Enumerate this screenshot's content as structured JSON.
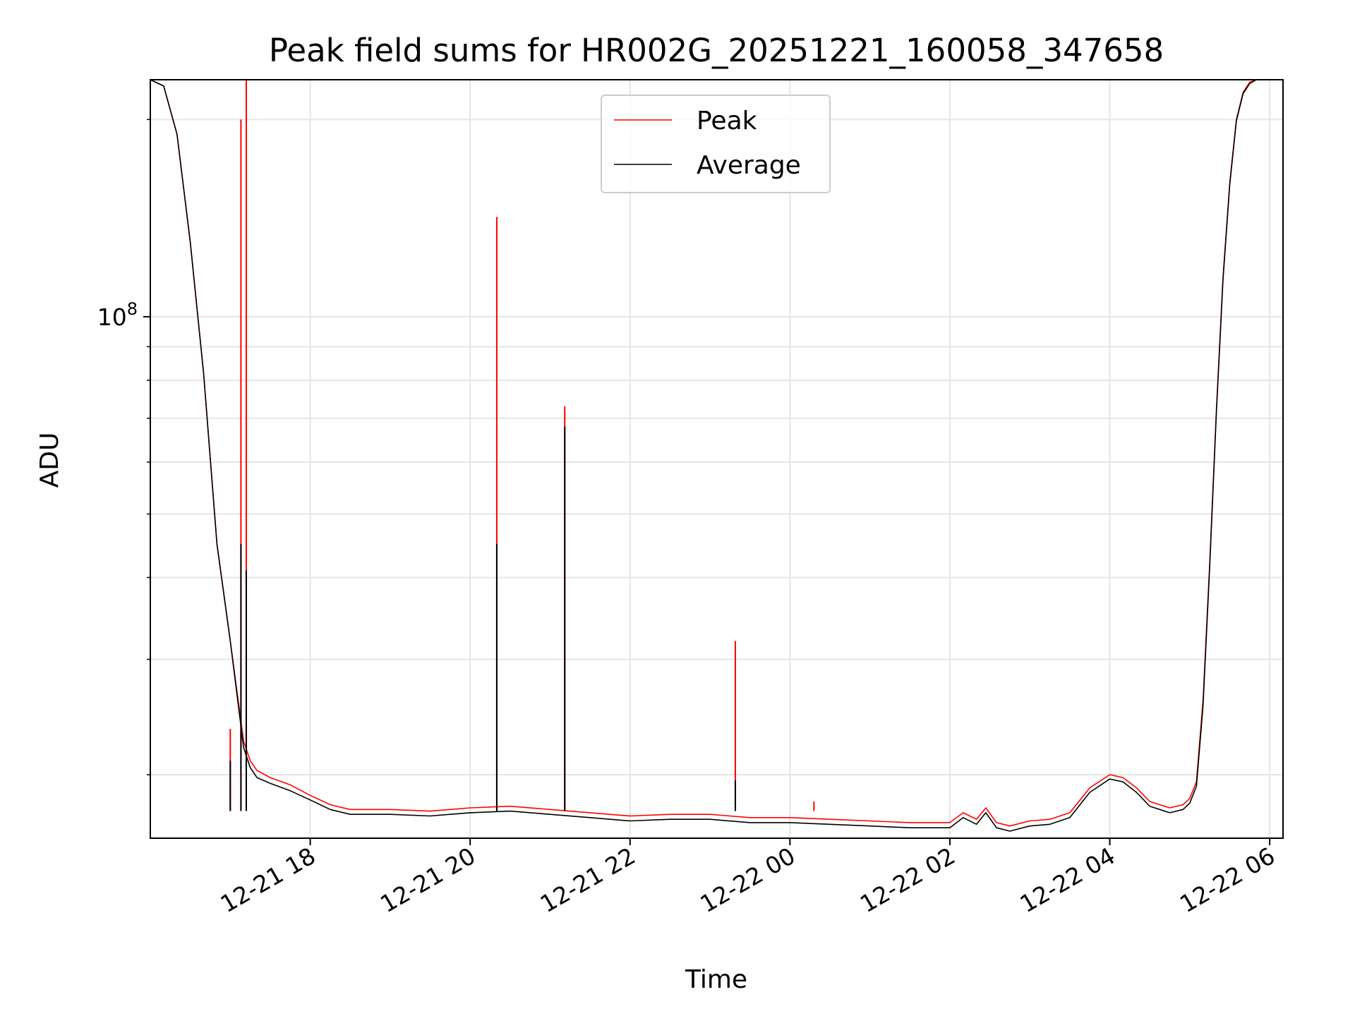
{
  "chart_data": {
    "type": "line",
    "title": "Peak field sums for HR002G_20251221_160058_347658",
    "xlabel": "Time",
    "ylabel": "ADU",
    "y_scale": "log",
    "grid": true,
    "legend_position": "top-center",
    "x_tick_labels": [
      "12-21 18",
      "12-21 20",
      "12-21 22",
      "12-22 00",
      "12-22 02",
      "12-22 04",
      "12-22 06"
    ],
    "y_tick_labels": [
      {
        "base": "10",
        "exponent": "8",
        "value": 100000000
      }
    ],
    "xlim": [
      "2025-12-21T16:00",
      "2025-12-22T06:10"
    ],
    "ylim": [
      16000000,
      230000000
    ],
    "series": [
      {
        "name": "Peak",
        "color": "#ff0000",
        "x": [
          "2025-12-21T16:00",
          "2025-12-21T16:10",
          "2025-12-21T16:20",
          "2025-12-21T16:30",
          "2025-12-21T16:40",
          "2025-12-21T16:50",
          "2025-12-21T17:00",
          "2025-12-21T17:10",
          "2025-12-21T17:15",
          "2025-12-21T17:20",
          "2025-12-21T17:30",
          "2025-12-21T17:45",
          "2025-12-21T18:00",
          "2025-12-21T18:15",
          "2025-12-21T18:30",
          "2025-12-21T19:00",
          "2025-12-21T19:30",
          "2025-12-21T20:00",
          "2025-12-21T20:30",
          "2025-12-21T21:00",
          "2025-12-21T21:30",
          "2025-12-21T22:00",
          "2025-12-21T22:30",
          "2025-12-21T23:00",
          "2025-12-21T23:30",
          "2025-12-22T00:00",
          "2025-12-22T00:30",
          "2025-12-22T01:00",
          "2025-12-22T01:30",
          "2025-12-22T02:00",
          "2025-12-22T02:10",
          "2025-12-22T02:20",
          "2025-12-22T02:27",
          "2025-12-22T02:35",
          "2025-12-22T02:45",
          "2025-12-22T03:00",
          "2025-12-22T03:15",
          "2025-12-22T03:30",
          "2025-12-22T03:45",
          "2025-12-22T04:00",
          "2025-12-22T04:10",
          "2025-12-22T04:20",
          "2025-12-22T04:30",
          "2025-12-22T04:45",
          "2025-12-22T04:55",
          "2025-12-22T05:00",
          "2025-12-22T05:05",
          "2025-12-22T05:10",
          "2025-12-22T05:15",
          "2025-12-22T05:20",
          "2025-12-22T05:25",
          "2025-12-22T05:30",
          "2025-12-22T05:35",
          "2025-12-22T05:40",
          "2025-12-22T05:45",
          "2025-12-22T05:50",
          "2025-12-22T06:00",
          "2025-12-22T06:10"
        ],
        "y": [
          230000000,
          225000000,
          190000000,
          130000000,
          82000000,
          45000000,
          32000000,
          22500000,
          21000000,
          20300000,
          19800000,
          19300000,
          18600000,
          18000000,
          17700000,
          17700000,
          17600000,
          17800000,
          17900000,
          17700000,
          17500000,
          17300000,
          17400000,
          17400000,
          17200000,
          17200000,
          17100000,
          17000000,
          16900000,
          16900000,
          17500000,
          17100000,
          17800000,
          16900000,
          16700000,
          17000000,
          17100000,
          17500000,
          19100000,
          20000000,
          19800000,
          19100000,
          18200000,
          17800000,
          18000000,
          18400000,
          19500000,
          26000000,
          42000000,
          72000000,
          115000000,
          160000000,
          200000000,
          220000000,
          228000000,
          230000000,
          230000000,
          230000000
        ],
        "spikes": [
          {
            "x": "2025-12-21T17:00",
            "y": 23500000
          },
          {
            "x": "2025-12-21T17:08",
            "y": 200000000
          },
          {
            "x": "2025-12-21T17:12",
            "y": 232000000
          },
          {
            "x": "2025-12-21T20:20",
            "y": 142000000
          },
          {
            "x": "2025-12-21T21:11",
            "y": 73000000
          },
          {
            "x": "2025-12-21T23:19",
            "y": 32000000
          },
          {
            "x": "2025-12-22T00:18",
            "y": 18200000
          }
        ]
      },
      {
        "name": "Average",
        "color": "#000000",
        "x": [
          "2025-12-21T16:00",
          "2025-12-21T16:10",
          "2025-12-21T16:20",
          "2025-12-21T16:30",
          "2025-12-21T16:40",
          "2025-12-21T16:50",
          "2025-12-21T17:00",
          "2025-12-21T17:10",
          "2025-12-21T17:15",
          "2025-12-21T17:20",
          "2025-12-21T17:30",
          "2025-12-21T17:45",
          "2025-12-21T18:00",
          "2025-12-21T18:15",
          "2025-12-21T18:30",
          "2025-12-21T19:00",
          "2025-12-21T19:30",
          "2025-12-21T20:00",
          "2025-12-21T20:30",
          "2025-12-21T21:00",
          "2025-12-21T21:30",
          "2025-12-21T22:00",
          "2025-12-21T22:30",
          "2025-12-21T23:00",
          "2025-12-21T23:30",
          "2025-12-22T00:00",
          "2025-12-22T00:30",
          "2025-12-22T01:00",
          "2025-12-22T01:30",
          "2025-12-22T02:00",
          "2025-12-22T02:10",
          "2025-12-22T02:20",
          "2025-12-22T02:27",
          "2025-12-22T02:35",
          "2025-12-22T02:45",
          "2025-12-22T03:00",
          "2025-12-22T03:15",
          "2025-12-22T03:30",
          "2025-12-22T03:45",
          "2025-12-22T04:00",
          "2025-12-22T04:10",
          "2025-12-22T04:20",
          "2025-12-22T04:30",
          "2025-12-22T04:45",
          "2025-12-22T04:55",
          "2025-12-22T05:00",
          "2025-12-22T05:05",
          "2025-12-22T05:10",
          "2025-12-22T05:15",
          "2025-12-22T05:20",
          "2025-12-22T05:25",
          "2025-12-22T05:30",
          "2025-12-22T05:35",
          "2025-12-22T05:40",
          "2025-12-22T05:45",
          "2025-12-22T05:50",
          "2025-12-22T06:00",
          "2025-12-22T06:10"
        ],
        "y": [
          230000000,
          225000000,
          190000000,
          130000000,
          82000000,
          45000000,
          32000000,
          22000000,
          20500000,
          19800000,
          19400000,
          18900000,
          18300000,
          17700000,
          17400000,
          17400000,
          17300000,
          17500000,
          17600000,
          17400000,
          17200000,
          17000000,
          17100000,
          17100000,
          16900000,
          16900000,
          16800000,
          16700000,
          16600000,
          16600000,
          17200000,
          16800000,
          17500000,
          16600000,
          16400000,
          16700000,
          16800000,
          17200000,
          18800000,
          19700000,
          19500000,
          18800000,
          17900000,
          17500000,
          17700000,
          18100000,
          19200000,
          25500000,
          41500000,
          71500000,
          114000000,
          159000000,
          199000000,
          219000000,
          227000000,
          230000000,
          230000000,
          230000000
        ],
        "spikes": [
          {
            "x": "2025-12-21T17:00",
            "y": 21000000
          },
          {
            "x": "2025-12-21T17:08",
            "y": 45000000
          },
          {
            "x": "2025-12-21T17:12",
            "y": 41000000
          },
          {
            "x": "2025-12-21T20:20",
            "y": 45000000
          },
          {
            "x": "2025-12-21T21:11",
            "y": 68000000
          },
          {
            "x": "2025-12-21T23:19",
            "y": 19600000
          }
        ]
      }
    ]
  }
}
